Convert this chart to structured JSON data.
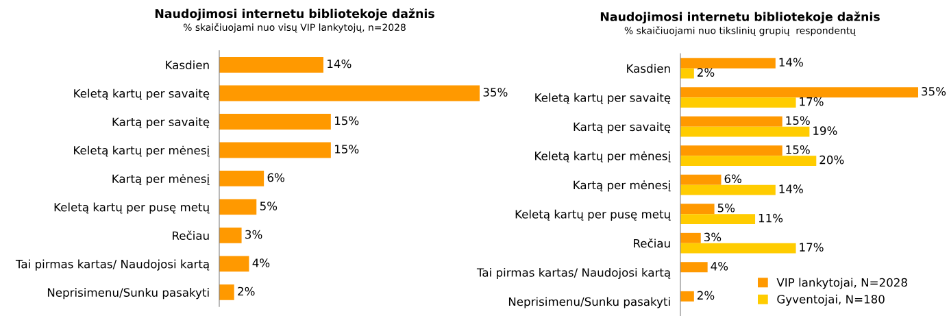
{
  "chart_data": [
    {
      "type": "bar",
      "orientation": "horizontal",
      "title": "Naudojimosi internetu bibliotekoje dažnis",
      "subtitle": "% skaičiuojami nuo visų VIP lankytojų, n=2028",
      "categories": [
        "Kasdien",
        "Keletą kartų per savaitę",
        "Kartą per savaitę",
        "Keletą kartų per mėnesį",
        "Kartą per mėnesį",
        "Keletą kartų per pusę metų",
        "Rečiau",
        "Tai pirmas kartas/ Naudojosi kartą",
        "Neprisimenu/Sunku pasakyti"
      ],
      "series": [
        {
          "color": "#ff9900",
          "values": [
            14,
            35,
            15,
            15,
            6,
            5,
            3,
            4,
            2
          ],
          "value_labels": [
            "14%",
            "35%",
            "15%",
            "15%",
            "6%",
            "5%",
            "3%",
            "4%",
            "2%"
          ]
        }
      ],
      "legend": false
    },
    {
      "type": "bar",
      "orientation": "horizontal",
      "title": "Naudojimosi internetu bibliotekoje dažnis",
      "subtitle": "% skaičiuojami nuo tikslinių grupių  respondentų",
      "categories": [
        "Kasdien",
        "Keletą kartų per savaitę",
        "Kartą per savaitę",
        "Keletą kartų per mėnesį",
        "Kartą per mėnesį",
        "Keletą kartų per pusę metų",
        "Rečiau",
        "Tai pirmas kartas/ Naudojosi kartą",
        "Neprisimenu/Sunku pasakyti"
      ],
      "series": [
        {
          "name": "VIP lankytojai, N=2028",
          "color": "#ff9900",
          "values": [
            14,
            35,
            15,
            15,
            6,
            5,
            3,
            4,
            2
          ],
          "value_labels": [
            "14%",
            "35%",
            "15%",
            "15%",
            "6%",
            "5%",
            "3%",
            "4%",
            "2%"
          ]
        },
        {
          "name": "Gyventojai, N=180",
          "color": "#ffcc00",
          "values": [
            2,
            17,
            19,
            20,
            14,
            11,
            17,
            null,
            null
          ],
          "value_labels": [
            "2%",
            "17%",
            "19%",
            "20%",
            "14%",
            "11%",
            "17%",
            null,
            null
          ]
        }
      ],
      "legend": "bottom right"
    }
  ]
}
